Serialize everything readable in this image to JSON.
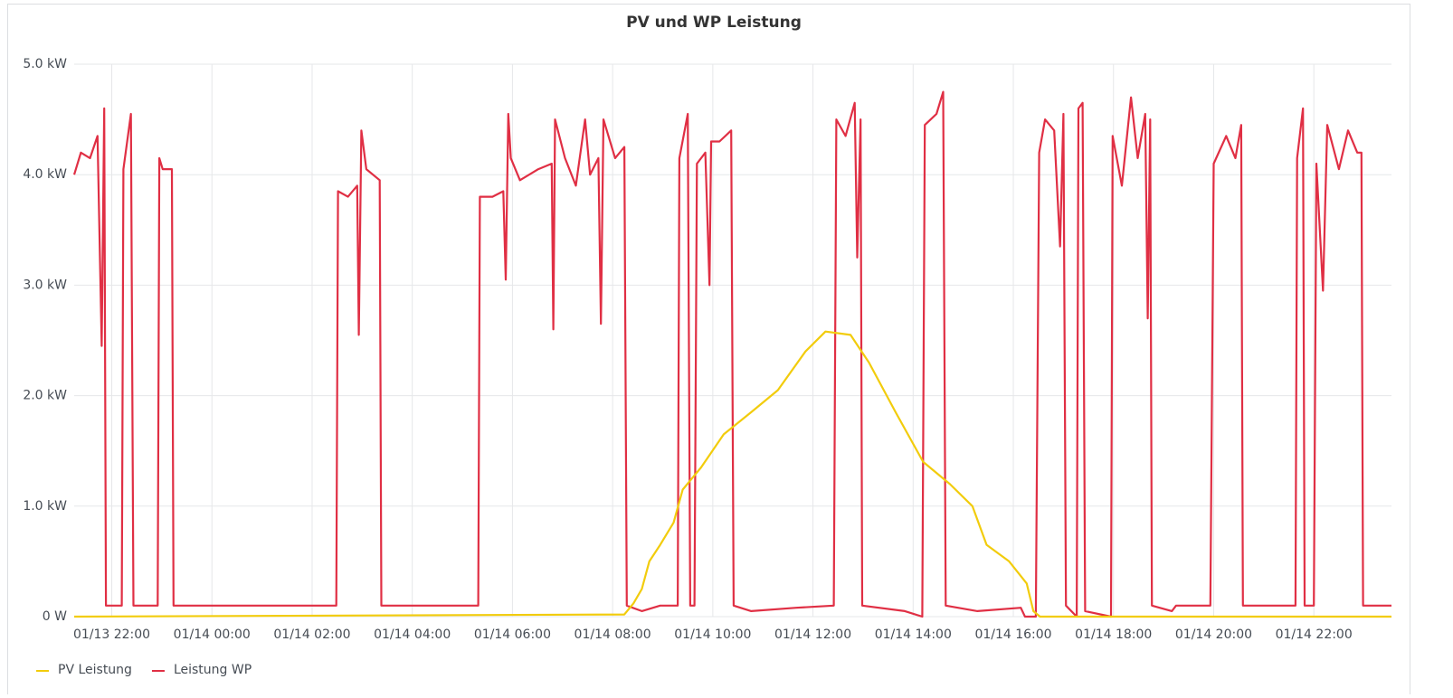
{
  "chart_data": {
    "type": "line",
    "title": "PV und WP Leistung",
    "xlim": [
      "01/13 21:15",
      "01/14 23:33"
    ],
    "xticks": [
      "01/13 22:00",
      "01/14 00:00",
      "01/14 02:00",
      "01/14 04:00",
      "01/14 06:00",
      "01/14 08:00",
      "01/14 10:00",
      "01/14 12:00",
      "01/14 14:00",
      "01/14 16:00",
      "01/14 18:00",
      "01/14 20:00",
      "01/14 22:00"
    ],
    "ylim": [
      0,
      5
    ],
    "yticks": [
      {
        "value": 0,
        "label": "0 W"
      },
      {
        "value": 1,
        "label": "1.0 kW"
      },
      {
        "value": 2,
        "label": "2.0 kW"
      },
      {
        "value": 3,
        "label": "3.0 kW"
      },
      {
        "value": 4,
        "label": "4.0 kW"
      },
      {
        "value": 5,
        "label": "5.0 kW"
      }
    ],
    "grid": true,
    "legend": "bottom",
    "series": [
      {
        "name": "PV Leistung",
        "color": "#f2cc0c",
        "x": [
          "01/13 21:15",
          "01/14 08:14",
          "01/14 08:25",
          "01/14 08:35",
          "01/14 08:44",
          "01/14 08:57",
          "01/14 09:13",
          "01/14 09:24",
          "01/14 09:46",
          "01/14 10:13",
          "01/14 10:46",
          "01/14 11:18",
          "01/14 11:51",
          "01/14 12:15",
          "01/14 12:45",
          "01/14 13:07",
          "01/14 13:39",
          "01/14 14:12",
          "01/14 14:44",
          "01/14 15:11",
          "01/14 15:28",
          "01/14 15:55",
          "01/14 16:16",
          "01/14 16:24",
          "01/14 16:32",
          "01/14 23:33"
        ],
        "values": [
          0,
          0.02,
          0.12,
          0.25,
          0.5,
          0.65,
          0.85,
          1.15,
          1.35,
          1.65,
          1.85,
          2.05,
          2.4,
          2.58,
          2.55,
          2.3,
          1.85,
          1.4,
          1.2,
          1.0,
          0.65,
          0.5,
          0.3,
          0.05,
          0,
          0
        ]
      },
      {
        "name": "Leistung WP",
        "color": "#e02f44",
        "x": [
          "01/13 21:15",
          "01/13 21:23",
          "01/13 21:34",
          "01/13 21:43",
          "01/13 21:48",
          "01/13 21:51",
          "01/13 21:53",
          "01/13 22:12",
          "01/13 22:14",
          "01/13 22:23",
          "01/13 22:26",
          "01/13 22:55",
          "01/13 22:57",
          "01/13 23:01",
          "01/13 23:12",
          "01/13 23:14",
          "01/14 02:29",
          "01/14 02:31",
          "01/14 02:43",
          "01/14 02:54",
          "01/14 02:56",
          "01/14 02:59",
          "01/14 03:05",
          "01/14 03:21",
          "01/14 03:23",
          "01/14 05:19",
          "01/14 05:21",
          "01/14 05:36",
          "01/14 05:49",
          "01/14 05:52",
          "01/14 05:55",
          "01/14 05:58",
          "01/14 06:09",
          "01/14 06:31",
          "01/14 06:47",
          "01/14 06:49",
          "01/14 06:51",
          "01/14 07:03",
          "01/14 07:16",
          "01/14 07:27",
          "01/14 07:33",
          "01/14 07:43",
          "01/14 07:46",
          "01/14 07:49",
          "01/14 08:03",
          "01/14 08:14",
          "01/14 08:17",
          "01/14 08:35",
          "01/14 08:57",
          "01/14 09:18",
          "01/14 09:20",
          "01/14 09:30",
          "01/14 09:33",
          "01/14 09:38",
          "01/14 09:41",
          "01/14 09:51",
          "01/14 09:56",
          "01/14 09:58",
          "01/14 10:08",
          "01/14 10:22",
          "01/14 10:25",
          "01/14 10:46",
          "01/14 11:40",
          "01/14 12:25",
          "01/14 12:28",
          "01/14 12:39",
          "01/14 12:50",
          "01/14 12:53",
          "01/14 12:57",
          "01/14 12:59",
          "01/14 13:50",
          "01/14 14:11",
          "01/14 14:14",
          "01/14 14:28",
          "01/14 14:36",
          "01/14 14:39",
          "01/14 15:17",
          "01/14 16:09",
          "01/14 16:14",
          "01/14 16:27",
          "01/14 16:31",
          "01/14 16:38",
          "01/14 16:49",
          "01/14 16:56",
          "01/14 17:00",
          "01/14 17:03",
          "01/14 17:16",
          "01/14 17:18",
          "01/14 17:23",
          "01/14 17:26",
          "01/14 17:57",
          "01/14 17:59",
          "01/14 18:10",
          "01/14 18:21",
          "01/14 18:29",
          "01/14 18:38",
          "01/14 18:41",
          "01/14 18:44",
          "01/14 18:46",
          "01/14 19:10",
          "01/14 19:15",
          "01/14 19:56",
          "01/14 20:00",
          "01/14 20:15",
          "01/14 20:26",
          "01/14 20:33",
          "01/14 20:35",
          "01/14 21:38",
          "01/14 21:40",
          "01/14 21:47",
          "01/14 21:49",
          "01/14 22:00",
          "01/14 22:03",
          "01/14 22:11",
          "01/14 22:16",
          "01/14 22:30",
          "01/14 22:41",
          "01/14 22:52",
          "01/14 22:57",
          "01/14 22:59",
          "01/14 23:33"
        ],
        "values": [
          4.0,
          4.2,
          4.15,
          4.35,
          2.45,
          4.6,
          0.1,
          0.1,
          4.05,
          4.55,
          0.1,
          0.1,
          4.15,
          4.05,
          4.05,
          0.1,
          0.1,
          3.85,
          3.8,
          3.9,
          2.55,
          4.4,
          4.05,
          3.95,
          0.1,
          0.1,
          3.8,
          3.8,
          3.85,
          3.05,
          4.55,
          4.15,
          3.95,
          4.05,
          4.1,
          2.6,
          4.5,
          4.15,
          3.9,
          4.5,
          4.0,
          4.15,
          2.65,
          4.5,
          4.15,
          4.25,
          0.1,
          0.05,
          0.1,
          0.1,
          4.15,
          4.55,
          0.1,
          0.1,
          4.1,
          4.2,
          3.0,
          4.3,
          4.3,
          4.4,
          0.1,
          0.05,
          0.08,
          0.1,
          4.5,
          4.35,
          4.65,
          3.25,
          4.5,
          0.1,
          0.05,
          0.0,
          4.45,
          4.55,
          4.75,
          0.1,
          0.05,
          0.08,
          0.0,
          0.0,
          4.2,
          4.5,
          4.4,
          3.35,
          4.55,
          0.1,
          0.0,
          4.6,
          4.65,
          0.05,
          0.0,
          4.35,
          3.9,
          4.7,
          4.15,
          4.55,
          2.7,
          4.5,
          0.1,
          0.05,
          0.1,
          0.1,
          4.1,
          4.35,
          4.15,
          4.45,
          0.1,
          0.1,
          4.15,
          4.6,
          0.1,
          0.1,
          4.1,
          2.95,
          4.45,
          4.05,
          4.4,
          4.2,
          4.2,
          0.1,
          0.1
        ]
      }
    ]
  }
}
